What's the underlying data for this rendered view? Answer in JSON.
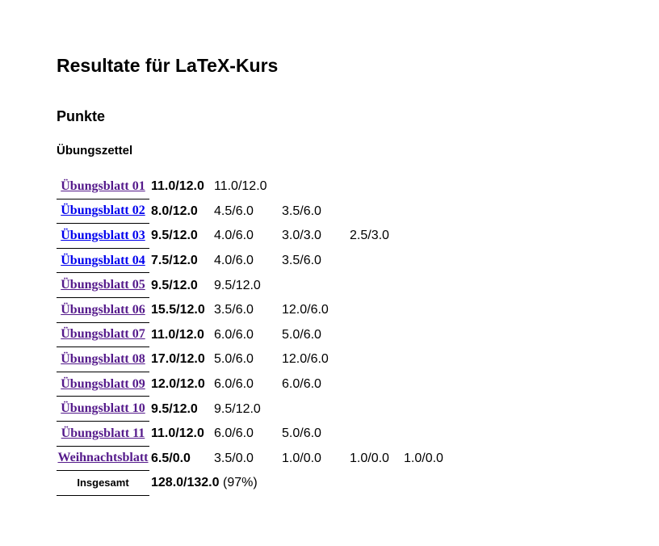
{
  "page": {
    "title": "Resultate für LaTeX-Kurs",
    "section": "Punkte",
    "subsection": "Übungszettel"
  },
  "rows": [
    {
      "label": "Übungsblatt 01",
      "visited": true,
      "total": "11.0/12.0",
      "parts": [
        "11.0/12.0"
      ]
    },
    {
      "label": "Übungsblatt 02",
      "visited": false,
      "total": "8.0/12.0",
      "parts": [
        "4.5/6.0",
        "3.5/6.0"
      ]
    },
    {
      "label": "Übungsblatt 03",
      "visited": false,
      "total": "9.5/12.0",
      "parts": [
        "4.0/6.0",
        "3.0/3.0",
        "2.5/3.0"
      ]
    },
    {
      "label": "Übungsblatt 04",
      "visited": false,
      "total": "7.5/12.0",
      "parts": [
        "4.0/6.0",
        "3.5/6.0"
      ]
    },
    {
      "label": "Übungsblatt 05",
      "visited": true,
      "total": "9.5/12.0",
      "parts": [
        "9.5/12.0"
      ]
    },
    {
      "label": "Übungsblatt 06",
      "visited": true,
      "total": "15.5/12.0",
      "parts": [
        "3.5/6.0",
        "12.0/6.0"
      ]
    },
    {
      "label": "Übungsblatt 07",
      "visited": true,
      "total": "11.0/12.0",
      "parts": [
        "6.0/6.0",
        "5.0/6.0"
      ]
    },
    {
      "label": "Übungsblatt 08",
      "visited": true,
      "total": "17.0/12.0",
      "parts": [
        "5.0/6.0",
        "12.0/6.0"
      ]
    },
    {
      "label": "Übungsblatt 09",
      "visited": true,
      "total": "12.0/12.0",
      "parts": [
        "6.0/6.0",
        "6.0/6.0"
      ]
    },
    {
      "label": "Übungsblatt 10",
      "visited": true,
      "total": "9.5/12.0",
      "parts": [
        "9.5/12.0"
      ]
    },
    {
      "label": "Übungsblatt 11",
      "visited": true,
      "total": "11.0/12.0",
      "parts": [
        "6.0/6.0",
        "5.0/6.0"
      ]
    },
    {
      "label": "Weihnachtsblatt",
      "visited": true,
      "total": "6.5/0.0",
      "parts": [
        "3.5/0.0",
        "1.0/0.0",
        "1.0/0.0",
        "1.0/0.0"
      ]
    }
  ],
  "summary": {
    "label": "Insgesamt",
    "total": "128.0/132.0",
    "percent": "(97%)"
  },
  "colors": {
    "link_visited": "#551a8b",
    "link_unvisited": "#0000ee"
  }
}
